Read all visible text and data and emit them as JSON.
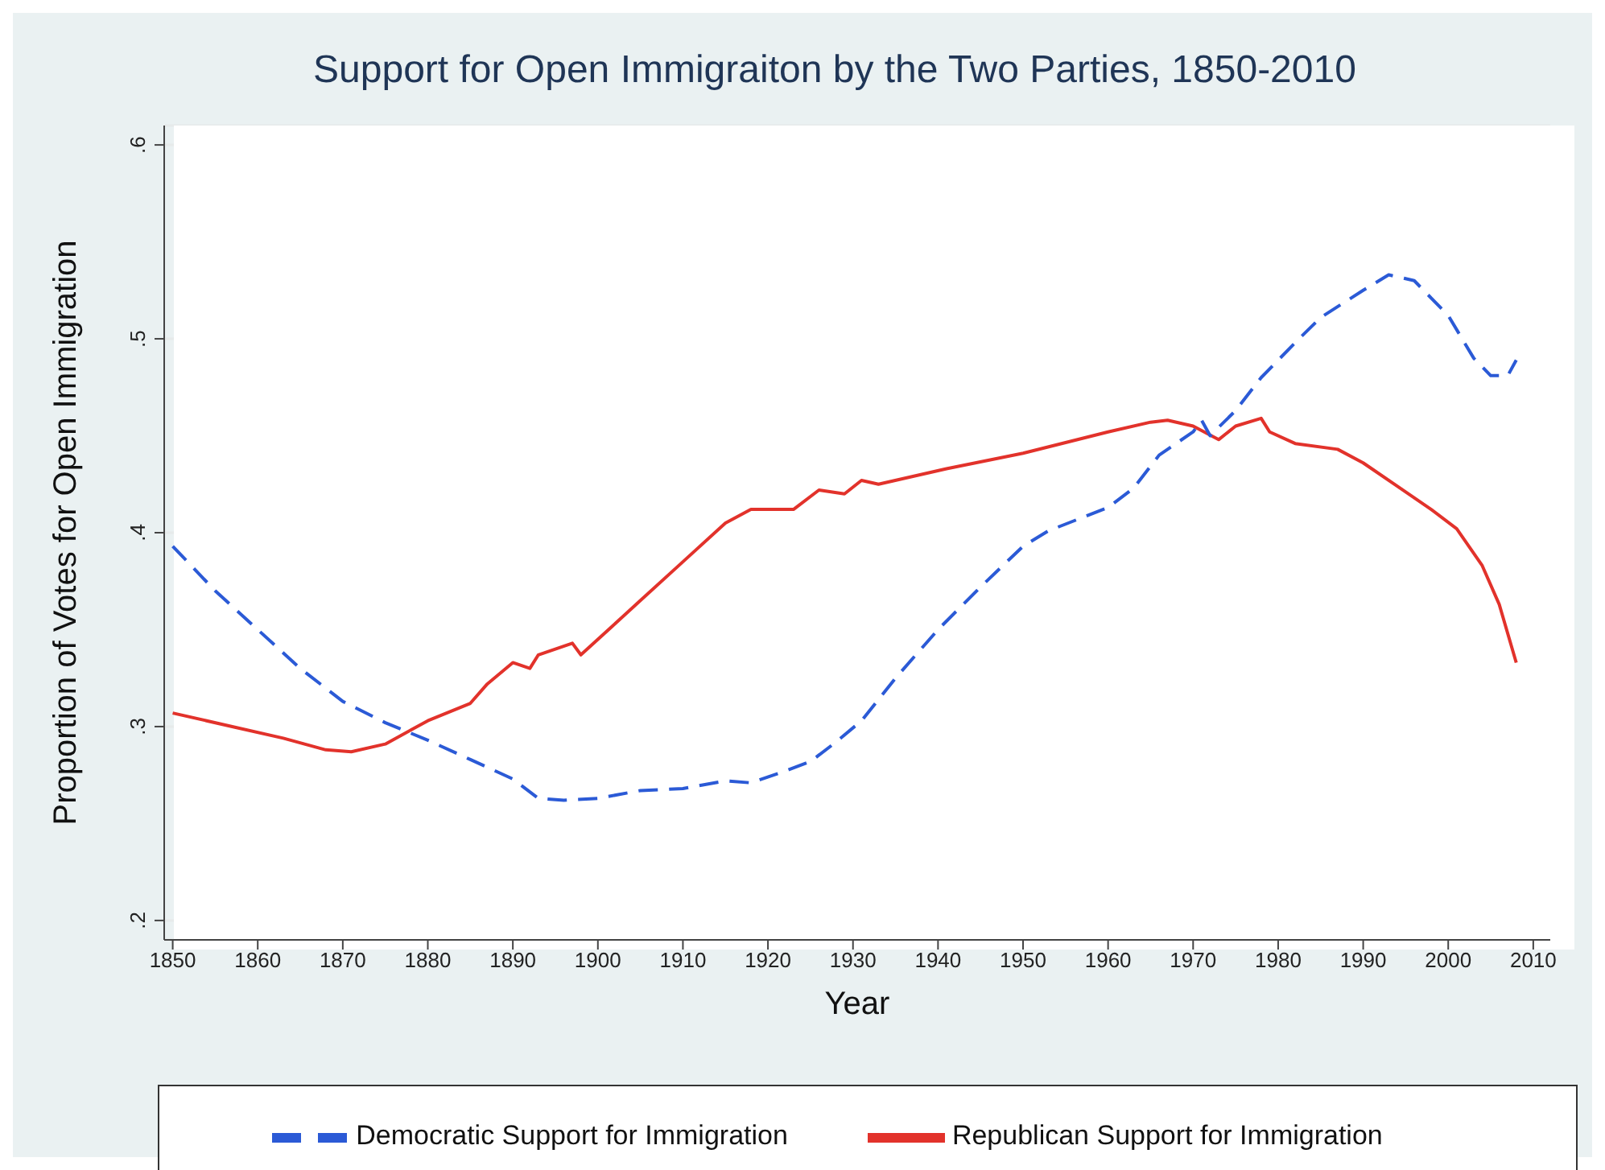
{
  "chart_data": {
    "type": "line",
    "title": "Support for Open Immigraiton by the Two Parties, 1850-2010",
    "xlabel": "Year",
    "ylabel": "Proportion of Votes for Open Immigration",
    "xlim": [
      1849,
      2012
    ],
    "xticks": [
      1850,
      1860,
      1870,
      1880,
      1890,
      1900,
      1910,
      1920,
      1930,
      1940,
      1950,
      1960,
      1970,
      1980,
      1990,
      2000,
      2010
    ],
    "ylim": [
      0.19,
      0.61
    ],
    "yticks": [
      {
        "value": 0.2,
        "label": ".2"
      },
      {
        "value": 0.3,
        "label": ".3"
      },
      {
        "value": 0.4,
        "label": ".4"
      },
      {
        "value": 0.5,
        "label": ".5"
      },
      {
        "value": 0.6,
        "label": ".6"
      }
    ],
    "grid": "y",
    "legend": "bottom",
    "marker": "none",
    "series": [
      {
        "name": "Republican Support for Immigration",
        "color": "#e2322b",
        "line_style": "solid",
        "x": [
          1850,
          1857,
          1863,
          1868,
          1871,
          1875,
          1880,
          1885,
          1887,
          1890,
          1892,
          1893,
          1897,
          1898,
          1905,
          1910,
          1915,
          1918,
          1923,
          1926,
          1929,
          1931,
          1933,
          1941,
          1950,
          1960,
          1965,
          1967,
          1970,
          1973,
          1975,
          1978,
          1979,
          1982,
          1987,
          1990,
          1994,
          1998,
          2001,
          2004,
          2006,
          2008
        ],
        "values": [
          0.307,
          0.3,
          0.294,
          0.288,
          0.287,
          0.291,
          0.303,
          0.312,
          0.322,
          0.333,
          0.33,
          0.337,
          0.343,
          0.337,
          0.365,
          0.385,
          0.405,
          0.412,
          0.412,
          0.422,
          0.42,
          0.427,
          0.425,
          0.433,
          0.441,
          0.452,
          0.457,
          0.458,
          0.455,
          0.448,
          0.455,
          0.459,
          0.452,
          0.446,
          0.443,
          0.436,
          0.424,
          0.412,
          0.402,
          0.383,
          0.363,
          0.333
        ]
      },
      {
        "name": "Democratic Support for Immigration",
        "color": "#2b5ad6",
        "line_style": "dashed",
        "x": [
          1850,
          1855,
          1860,
          1865,
          1870,
          1875,
          1880,
          1885,
          1890,
          1893,
          1896,
          1900,
          1905,
          1910,
          1915,
          1918,
          1922,
          1925,
          1928,
          1931,
          1935,
          1940,
          1945,
          1950,
          1953,
          1960,
          1963,
          1966,
          1970,
          1971,
          1972,
          1975,
          1978,
          1982,
          1985,
          1990,
          1993,
          1996,
          2000,
          2003,
          2005,
          2007,
          2008
        ],
        "values": [
          0.393,
          0.37,
          0.35,
          0.33,
          0.313,
          0.302,
          0.293,
          0.283,
          0.273,
          0.263,
          0.262,
          0.263,
          0.267,
          0.268,
          0.272,
          0.271,
          0.277,
          0.282,
          0.292,
          0.303,
          0.325,
          0.35,
          0.372,
          0.393,
          0.401,
          0.413,
          0.423,
          0.44,
          0.452,
          0.458,
          0.45,
          0.463,
          0.48,
          0.498,
          0.511,
          0.525,
          0.533,
          0.53,
          0.512,
          0.49,
          0.481,
          0.481,
          0.489
        ]
      }
    ]
  }
}
